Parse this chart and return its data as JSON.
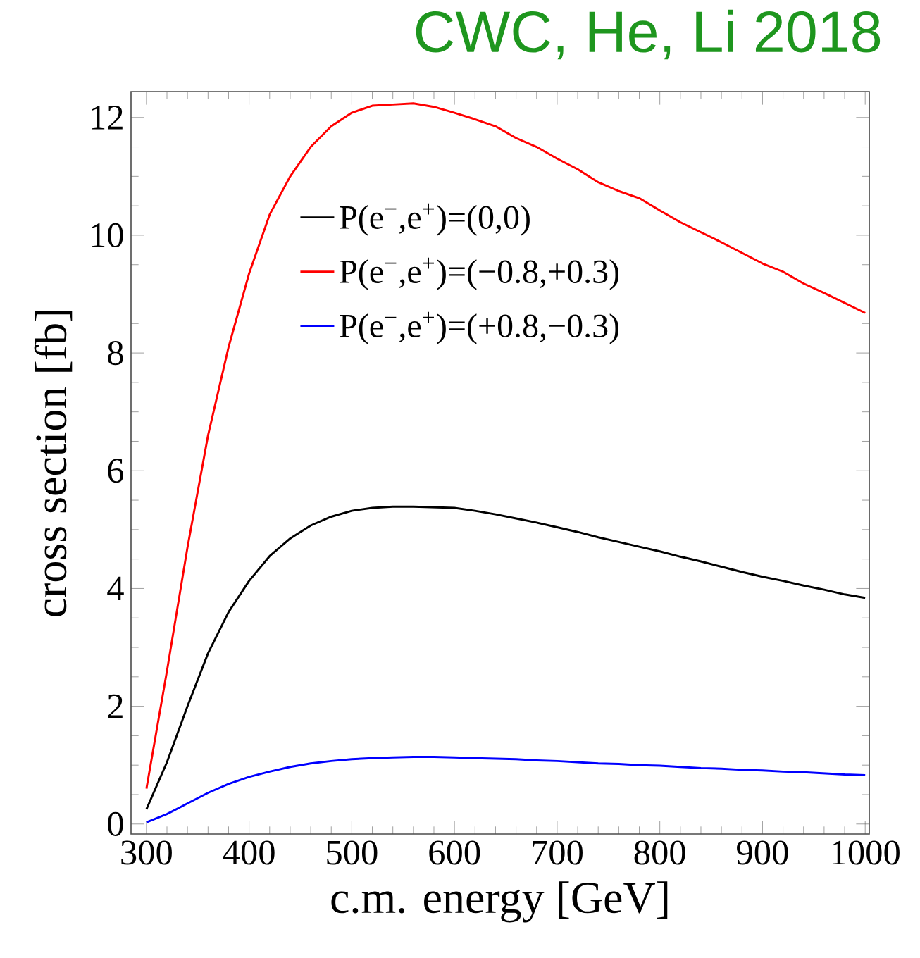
{
  "chart_data": {
    "type": "line",
    "title": "CWC, He, Li 2018",
    "xlabel": "c.m. energy [GeV]",
    "ylabel": "cross section [fb]",
    "x": [
      300,
      320,
      340,
      360,
      380,
      400,
      420,
      440,
      460,
      480,
      500,
      520,
      540,
      560,
      580,
      600,
      620,
      640,
      660,
      680,
      700,
      720,
      740,
      760,
      780,
      800,
      820,
      840,
      860,
      880,
      900,
      920,
      940,
      960,
      980,
      1000
    ],
    "series": [
      {
        "name": "P(e$^{−}$,e$^{+}$)=(0,0)",
        "color": "#000000",
        "values": [
          0.25,
          1.05,
          2.0,
          2.9,
          3.6,
          4.13,
          4.55,
          4.85,
          5.07,
          5.22,
          5.32,
          5.37,
          5.39,
          5.39,
          5.38,
          5.37,
          5.32,
          5.26,
          5.19,
          5.12,
          5.04,
          4.96,
          4.87,
          4.79,
          4.71,
          4.63,
          4.54,
          4.46,
          4.37,
          4.28,
          4.2,
          4.13,
          4.05,
          3.98,
          3.9,
          3.84
        ]
      },
      {
        "name": "P(e$^{−}$,e$^{+}$)=(−0.8,+0.3)",
        "color": "#ff0000",
        "values": [
          0.6,
          2.6,
          4.7,
          6.6,
          8.1,
          9.35,
          10.35,
          11.0,
          11.5,
          11.85,
          12.08,
          12.2,
          12.22,
          12.24,
          12.18,
          12.08,
          11.97,
          11.85,
          11.65,
          11.5,
          11.3,
          11.12,
          10.9,
          10.75,
          10.63,
          10.42,
          10.22,
          10.05,
          9.88,
          9.7,
          9.52,
          9.38,
          9.18,
          9.02,
          8.85,
          8.68
        ]
      },
      {
        "name": "P(e$^{−}$,e$^{+}$)=(+0.8,−0.3)",
        "color": "#0000ff",
        "values": [
          0.03,
          0.17,
          0.35,
          0.53,
          0.68,
          0.8,
          0.89,
          0.97,
          1.03,
          1.07,
          1.1,
          1.12,
          1.13,
          1.14,
          1.14,
          1.13,
          1.12,
          1.11,
          1.1,
          1.08,
          1.07,
          1.05,
          1.03,
          1.02,
          1.0,
          0.99,
          0.97,
          0.95,
          0.94,
          0.92,
          0.91,
          0.89,
          0.88,
          0.86,
          0.84,
          0.83
        ]
      }
    ],
    "xlim": [
      285,
      1004
    ],
    "ylim": [
      -0.17,
      12.44
    ],
    "xticks": [
      300,
      400,
      500,
      600,
      700,
      800,
      900,
      1000
    ],
    "yticks": [
      0,
      2,
      4,
      6,
      8,
      10,
      12
    ],
    "grid": false,
    "legend": "top",
    "marker": "none",
    "line_style": "solid"
  }
}
